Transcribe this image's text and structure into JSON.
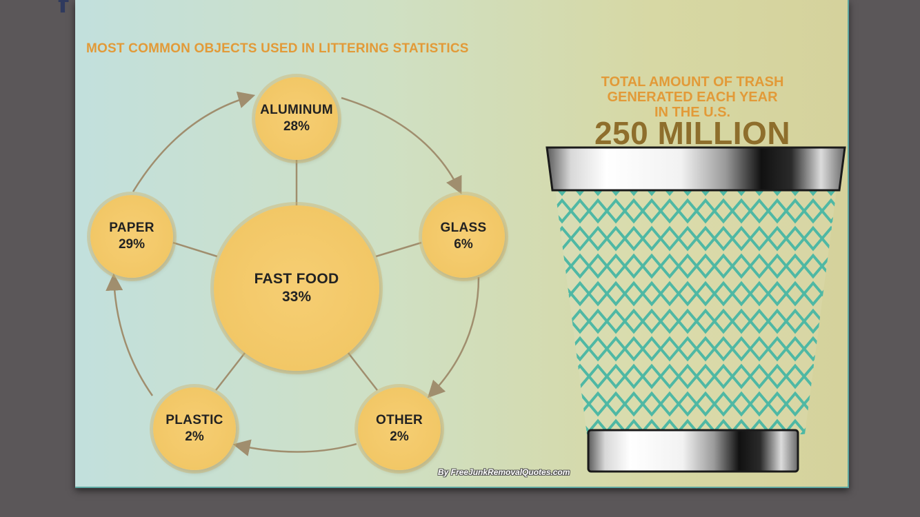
{
  "page": {
    "corner_glyph": "f",
    "headline": "MOST COMMON OBJECTS USED IN LITTERING STATISTICS",
    "credit": "By FreeJunkRemovalQuotes.com"
  },
  "diagram": {
    "center": {
      "label": "FAST FOOD",
      "percent": "33%"
    },
    "nodes": [
      {
        "label": "ALUMINUM",
        "percent": "28%"
      },
      {
        "label": "GLASS",
        "percent": "6%"
      },
      {
        "label": "OTHER",
        "percent": "2%"
      },
      {
        "label": "PLASTIC",
        "percent": "2%"
      },
      {
        "label": "PAPER",
        "percent": "29%"
      }
    ]
  },
  "stat": {
    "title_lines": [
      "TOTAL AMOUNT OF TRASH",
      "GENERATED EACH YEAR",
      "IN THE U.S."
    ],
    "value": "250 MILLION"
  },
  "colors": {
    "headline": "#e29a38",
    "bubble": "#f2c766",
    "stat_value": "#8e6e2c",
    "connector": "#a08e6e",
    "mesh": "#4fb8a4"
  },
  "icons": {
    "trash_can": "trash-can-icon",
    "facebook": "facebook-icon"
  }
}
